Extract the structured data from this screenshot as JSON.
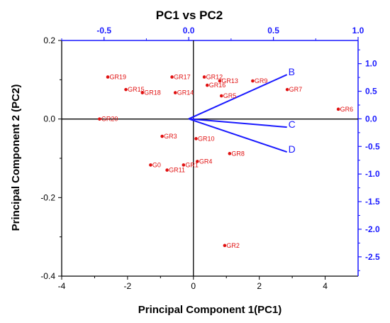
{
  "chart_data": {
    "type": "scatter",
    "title": "PC1 vs PC2",
    "xlabel": "Principal Component 1(PC1)",
    "ylabel": "Principal Component 2 (PC2)",
    "xlim": [
      -4,
      5
    ],
    "ylim": [
      -0.4,
      0.2
    ],
    "xticks": [
      "-4",
      "-2",
      "0",
      "2",
      "4"
    ],
    "xtick_values": [
      -4,
      -2,
      0,
      2,
      4
    ],
    "yticks": [
      "-0.4",
      "-0.2",
      "0.0",
      "0.2"
    ],
    "ytick_values": [
      -0.4,
      -0.2,
      0.0,
      0.2
    ],
    "top_axis": {
      "lim": [
        -0.75,
        1.0
      ],
      "ticks": [
        "-0.5",
        "0.0",
        "0.5",
        "1.0"
      ],
      "tick_values": [
        -0.5,
        0.0,
        0.5,
        1.0
      ],
      "color": "#1a1aff"
    },
    "right_axis": {
      "lim": [
        -2.85,
        1.42
      ],
      "ticks": [
        "1.0",
        "0.5",
        "0.0",
        "-0.5",
        "-1.0",
        "-1.5",
        "-2.0",
        "-2.5"
      ],
      "tick_values": [
        1.0,
        0.5,
        0.0,
        -0.5,
        -1.0,
        -1.5,
        -2.0,
        -2.5
      ],
      "color": "#1a1aff"
    },
    "point_color": "#e01010",
    "vector_color": "#1a1aff",
    "points": [
      {
        "label": "GR19",
        "x": -2.6,
        "y": 0.107
      },
      {
        "label": "GR17",
        "x": -0.65,
        "y": 0.107
      },
      {
        "label": "GR12",
        "x": 0.33,
        "y": 0.107
      },
      {
        "label": "GR13",
        "x": 0.8,
        "y": 0.097
      },
      {
        "label": "GR9",
        "x": 1.8,
        "y": 0.097
      },
      {
        "label": "GR16",
        "x": 0.42,
        "y": 0.086
      },
      {
        "label": "GR15",
        "x": -2.05,
        "y": 0.075
      },
      {
        "label": "GR7",
        "x": 2.85,
        "y": 0.075
      },
      {
        "label": "GR18",
        "x": -1.55,
        "y": 0.067
      },
      {
        "label": "GR14",
        "x": -0.55,
        "y": 0.067
      },
      {
        "label": "GR5",
        "x": 0.85,
        "y": 0.059
      },
      {
        "label": "GR6",
        "x": 4.4,
        "y": 0.025
      },
      {
        "label": "GR20",
        "x": -2.85,
        "y": 0.0
      },
      {
        "label": "GR3",
        "x": -0.95,
        "y": -0.044
      },
      {
        "label": "GR10",
        "x": 0.08,
        "y": -0.05
      },
      {
        "label": "GR8",
        "x": 1.1,
        "y": -0.088
      },
      {
        "label": "GR4",
        "x": 0.12,
        "y": -0.108
      },
      {
        "label": "GR1",
        "x": -0.3,
        "y": -0.117
      },
      {
        "label": "G0",
        "x": -1.3,
        "y": -0.117
      },
      {
        "label": "GR11",
        "x": -0.8,
        "y": -0.13
      },
      {
        "label": "GR2",
        "x": 0.95,
        "y": -0.322
      }
    ],
    "vectors": [
      {
        "label": "B",
        "x": 0.58,
        "y": 0.8
      },
      {
        "label": "C",
        "x": 0.58,
        "y": -0.15
      },
      {
        "label": "D",
        "x": 0.58,
        "y": -0.6
      }
    ]
  }
}
